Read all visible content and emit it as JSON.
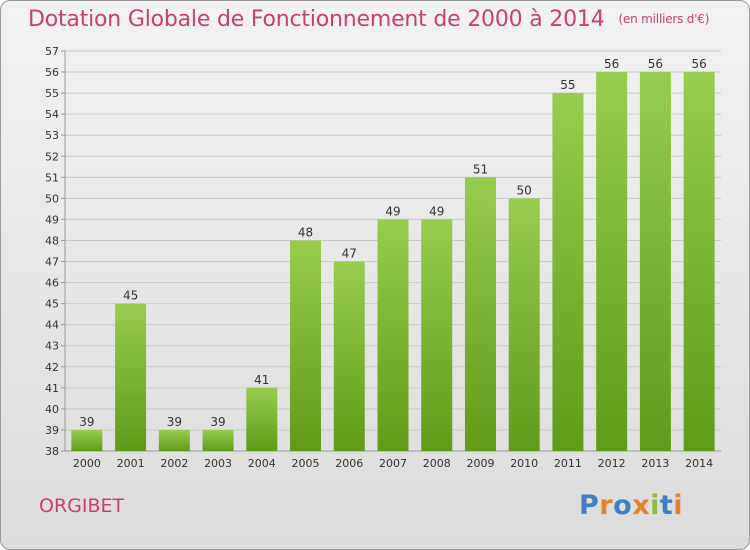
{
  "header": {
    "title": "Dotation Globale de Fonctionnement de 2000 à 2014",
    "unit": "(en milliers d'€)"
  },
  "footer": {
    "commune": "ORGIBET",
    "brand": "Proxiti"
  },
  "colors": {
    "title": "#c8416a",
    "bar_top": "#98cc4f",
    "bar_bottom": "#5f9b18",
    "grid": "#c8c8c8",
    "axis_text": "#333333"
  },
  "chart_data": {
    "type": "bar",
    "categories": [
      "2000",
      "2001",
      "2002",
      "2003",
      "2004",
      "2005",
      "2006",
      "2007",
      "2008",
      "2009",
      "2010",
      "2011",
      "2012",
      "2013",
      "2014"
    ],
    "values": [
      39,
      45,
      39,
      39,
      41,
      48,
      47,
      49,
      49,
      51,
      50,
      55,
      56,
      56,
      56
    ],
    "ylim": [
      38,
      57
    ],
    "yticks": [
      38,
      39,
      40,
      41,
      42,
      43,
      44,
      45,
      46,
      47,
      48,
      49,
      50,
      51,
      52,
      53,
      54,
      55,
      56,
      57
    ],
    "grid": true,
    "data_labels": true
  }
}
